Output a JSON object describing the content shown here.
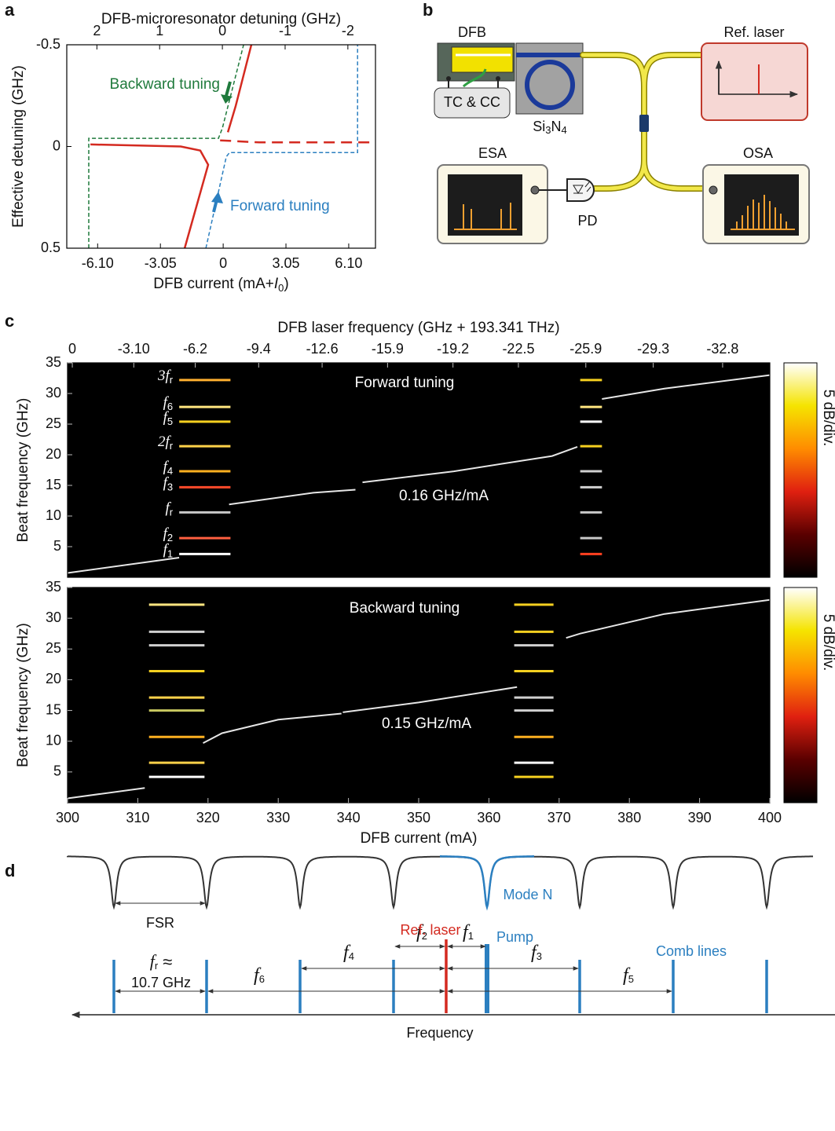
{
  "panel_labels": [
    "a",
    "b",
    "c",
    "d"
  ],
  "chart_data": [
    {
      "type": "line",
      "x2label": "DFB-microresonator detuning (GHz)",
      "xlabel": [
        "DFB current (mA+",
        "I",
        "0",
        ")"
      ],
      "ylabel": "Effective detuning (GHz)",
      "xlim": [
        -7.6,
        7.4
      ],
      "xticks": [
        {
          "value": -6.1,
          "label": "-6.10"
        },
        -3.05,
        0,
        3.05,
        {
          "value": 6.1,
          "label": "6.10"
        }
      ],
      "x2lim": [
        2.48,
        -2.44
      ],
      "x2ticks": [
        2,
        1,
        0,
        -1,
        -2
      ],
      "ylim": [
        -0.5,
        0.5
      ],
      "y_inverted": true,
      "yticks": [
        -0.5,
        0,
        0.5
      ],
      "series": [
        {
          "color": "#d42a20",
          "dash": "solid",
          "x": [
            1.37,
            0.61,
            0.23,
            null,
            -6.45,
            -2.06,
            -1.11,
            -0.73,
            -1.87
          ],
          "values": [
            -0.5,
            -0.2,
            -0.07,
            null,
            -0.01,
            0,
            0.02,
            0.09,
            0.5
          ]
        },
        {
          "color": "#d42a20",
          "dash": "dashed",
          "x": [
            -0.15,
            1.76,
            7.29
          ],
          "values": [
            -0.03,
            -0.02,
            -0.02
          ]
        },
        {
          "color": "#1f7a3c",
          "dash": "dotted",
          "x": [
            -6.53,
            -6.53,
            -0.23,
            -0.04,
            0.99
          ],
          "values": [
            0.5,
            -0.04,
            -0.04,
            -0.09,
            -0.5
          ]
        },
        {
          "color": "#2b7fc0",
          "dash": "dotted",
          "x": [
            -0.84,
            0.15,
            0.31,
            6.53,
            6.53
          ],
          "values": [
            0.5,
            0.05,
            0.03,
            0.03,
            -0.5
          ]
        }
      ],
      "annotations": [
        {
          "text": "Backward tuning",
          "color": "#1f7a3c"
        },
        {
          "text": "Forward tuning",
          "color": "#2b7fc0"
        }
      ]
    },
    {
      "type": "spectrogram",
      "x2label": "DFB laser frequency (GHz + 193.341 THz)",
      "ylabel": "Beat frequency (GHz)",
      "xlim": [
        300,
        400
      ],
      "x2lim": [
        0.24,
        -35.18
      ],
      "x2ticks": [
        0,
        {
          "value": -3.1,
          "label": "-3.10"
        },
        -6.2,
        -9.4,
        -12.6,
        -15.9,
        -19.2,
        -22.5,
        -25.9,
        -29.3,
        -32.8
      ],
      "ylim": [
        0,
        35
      ],
      "yticks": [
        5,
        10,
        15,
        20,
        25,
        30,
        35
      ],
      "background": "#000000",
      "series": [
        {
          "color": "#e6e6e6",
          "x": [
            300,
            315.9,
            null,
            323,
            335,
            341,
            null,
            342,
            355,
            369,
            372.6,
            null,
            376.1,
            385,
            400
          ],
          "values": [
            0.7,
            3.2,
            null,
            11.9,
            13.8,
            14.3,
            null,
            15.5,
            17.3,
            19.8,
            21.3,
            null,
            29.1,
            30.8,
            33.0
          ]
        }
      ],
      "comb_regions": [
        {
          "x": [
            315.9,
            323.2
          ],
          "freqs": [
            32.2,
            27.8,
            25.4,
            21.4,
            17.3,
            14.7,
            10.6,
            6.4,
            3.8
          ],
          "colors": [
            "#ffb030",
            "#ffe680",
            "#f5d020",
            "#ffd24a",
            "#ffb020",
            "#ff4a2a",
            "#c8c8c8",
            "#ff6040",
            "#ffffff"
          ]
        },
        {
          "x": [
            373.0,
            376.1
          ],
          "freqs": [
            32.2,
            27.8,
            25.4,
            21.4,
            17.3,
            14.7,
            10.6,
            6.4,
            3.8
          ],
          "colors": [
            "#f5d020",
            "#ffe680",
            "#ffffff",
            "#f5d020",
            "#d0d0d0",
            "#d0d0d0",
            "#c8c8c8",
            "#c8c8c8",
            "#ff4020"
          ]
        }
      ],
      "line_labels": [
        [
          "3f",
          "r"
        ],
        [
          "f",
          "6"
        ],
        [
          "f",
          "5"
        ],
        [
          "2f",
          "r"
        ],
        [
          "f",
          "4"
        ],
        [
          "f",
          "3"
        ],
        [
          "f",
          "r"
        ],
        [
          "f",
          "2"
        ],
        [
          "f",
          "1"
        ]
      ],
      "annotations": [
        {
          "text": "Forward tuning",
          "color": "#ffffff"
        },
        {
          "text": "0.16 GHz/mA",
          "color": "#ffffff"
        }
      ],
      "colormap": [
        "#000000",
        "#5a0000",
        "#e02010",
        "#ff8c00",
        "#f5e400",
        "#ffffff"
      ],
      "colorbar_label": "5 dB/div."
    },
    {
      "type": "spectrogram",
      "xlabel": "DFB current (mA)",
      "ylabel": "Beat frequency (GHz)",
      "xlim": [
        300,
        400
      ],
      "xticks": [
        300,
        310,
        320,
        330,
        340,
        350,
        360,
        370,
        380,
        390,
        400
      ],
      "ylim": [
        0,
        35
      ],
      "yticks": [
        5,
        10,
        15,
        20,
        25,
        30,
        35
      ],
      "background": "#000000",
      "series": [
        {
          "color": "#e6e6e6",
          "x": [
            300,
            311,
            null,
            319.3,
            322,
            330,
            339,
            null,
            339.2,
            350,
            364,
            null,
            371,
            373,
            385,
            400
          ],
          "values": [
            0.7,
            2.4,
            null,
            9.7,
            11.3,
            13.5,
            14.5,
            null,
            14.7,
            16.3,
            18.8,
            null,
            26.8,
            27.5,
            30.7,
            33.0
          ]
        }
      ],
      "comb_regions": [
        {
          "x": [
            311.6,
            319.5
          ],
          "freqs": [
            32.2,
            27.8,
            25.6,
            21.4,
            17.1,
            15.0,
            10.7,
            6.5,
            4.2
          ],
          "colors": [
            "#ffe680",
            "#d0d0d0",
            "#d0d0d0",
            "#f5d020",
            "#ffd24a",
            "#c8c860",
            "#ffb020",
            "#ffd24a",
            "#ffffff"
          ]
        },
        {
          "x": [
            363.6,
            369.2
          ],
          "freqs": [
            32.2,
            27.8,
            25.6,
            21.4,
            17.1,
            15.0,
            10.7,
            6.5,
            4.2
          ],
          "colors": [
            "#f5d020",
            "#f5d020",
            "#d0d0d0",
            "#f5d020",
            "#d0d0d0",
            "#d0d0d0",
            "#ffb020",
            "#ffffff",
            "#f5d020"
          ]
        }
      ],
      "annotations": [
        {
          "text": "Backward tuning",
          "color": "#ffffff"
        },
        {
          "text": "0.15 GHz/mA",
          "color": "#ffffff"
        }
      ],
      "colormap": [
        "#000000",
        "#5a0000",
        "#e02010",
        "#ff8c00",
        "#f5e400",
        "#ffffff"
      ],
      "colorbar_label": "5 dB/div."
    }
  ],
  "diagram_b": {
    "dfb": "DFB",
    "tc_cc": "TC & CC",
    "chip": [
      "Si",
      "3",
      "N",
      "4"
    ],
    "ref_laser": "Ref. laser",
    "esa": "ESA",
    "osa": "OSA",
    "pd": "PD"
  },
  "diagram_d": {
    "mode_label": "Mode N",
    "fsr_label": "FSR",
    "ref_label": "Ref. laser",
    "pump_label": "Pump",
    "comb_label": "Comb lines",
    "fr_label": [
      "f",
      "r",
      "≈"
    ],
    "fr_value": "10.7 GHz",
    "spacings": [
      [
        "f",
        "6"
      ],
      [
        "f",
        "4"
      ],
      [
        "f",
        "2"
      ],
      [
        "f",
        "1"
      ],
      [
        "f",
        "3"
      ],
      [
        "f",
        "5"
      ]
    ],
    "axis_label": "Frequency"
  }
}
